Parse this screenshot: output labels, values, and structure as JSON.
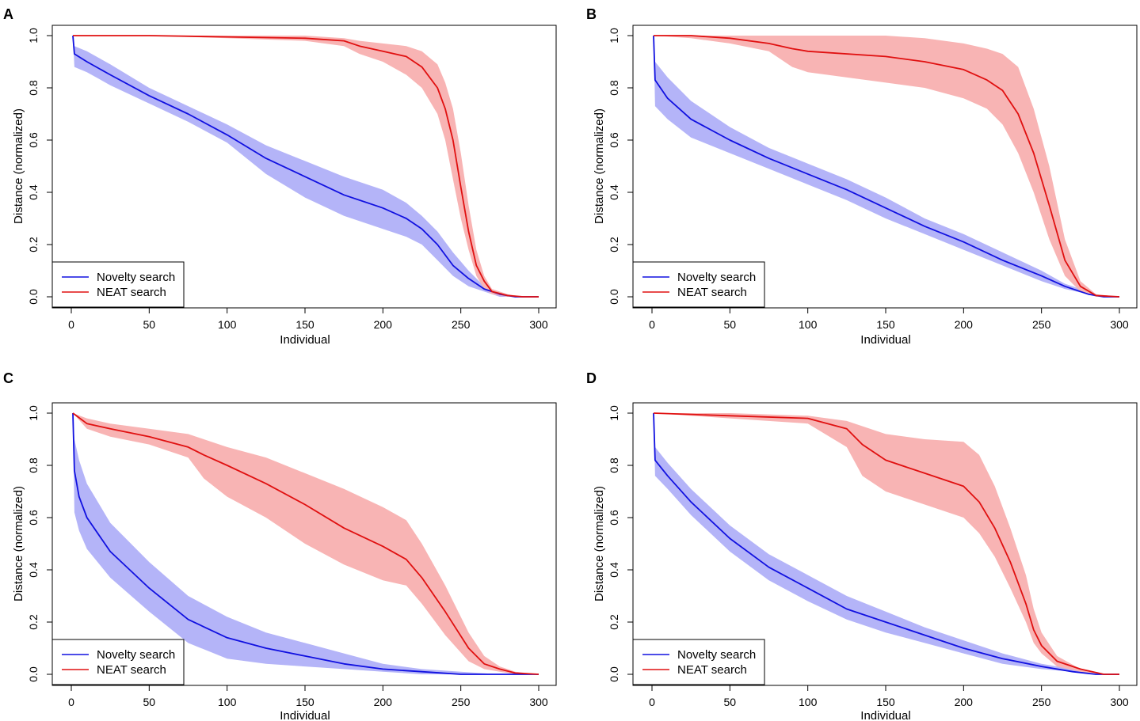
{
  "colors": {
    "novelty_line": "#1010e0",
    "novelty_band": "#b4b4f8",
    "neat_line": "#e01010",
    "neat_band": "#f8b4b4",
    "frame": "#000000"
  },
  "chart_data": [
    {
      "panel": "A",
      "type": "line",
      "xlabel": "Individual",
      "ylabel": "Distance (normalized)",
      "xlim": [
        0,
        300
      ],
      "ylim": [
        0,
        1
      ],
      "xticks": [
        "0",
        "50",
        "100",
        "150",
        "200",
        "250",
        "300"
      ],
      "yticks": [
        "0.0",
        "0.2",
        "0.4",
        "0.6",
        "0.8",
        "1.0"
      ],
      "legend": {
        "position": "bottom-left",
        "entries": [
          "Novelty search",
          "NEAT search"
        ]
      },
      "series": [
        {
          "name": "Novelty search",
          "x": [
            1,
            2,
            10,
            25,
            50,
            75,
            100,
            125,
            150,
            175,
            200,
            215,
            225,
            235,
            245,
            255,
            265,
            275,
            285,
            300
          ],
          "y": [
            1.0,
            0.93,
            0.9,
            0.85,
            0.77,
            0.7,
            0.62,
            0.53,
            0.46,
            0.39,
            0.34,
            0.3,
            0.26,
            0.2,
            0.12,
            0.07,
            0.03,
            0.01,
            0.0,
            0.0
          ],
          "lower": [
            1.0,
            0.88,
            0.86,
            0.81,
            0.74,
            0.67,
            0.59,
            0.47,
            0.38,
            0.31,
            0.26,
            0.23,
            0.2,
            0.14,
            0.08,
            0.04,
            0.02,
            0.0,
            0.0,
            0.0
          ],
          "upper": [
            1.0,
            0.96,
            0.94,
            0.89,
            0.8,
            0.73,
            0.66,
            0.58,
            0.52,
            0.46,
            0.41,
            0.36,
            0.31,
            0.25,
            0.17,
            0.1,
            0.04,
            0.01,
            0.0,
            0.0
          ]
        },
        {
          "name": "NEAT search",
          "x": [
            1,
            50,
            100,
            150,
            175,
            185,
            200,
            215,
            225,
            235,
            240,
            245,
            250,
            255,
            260,
            265,
            270,
            280,
            290,
            300
          ],
          "y": [
            1.0,
            1.0,
            0.995,
            0.99,
            0.98,
            0.96,
            0.94,
            0.92,
            0.88,
            0.8,
            0.72,
            0.6,
            0.42,
            0.25,
            0.12,
            0.06,
            0.02,
            0.005,
            0.0,
            0.0
          ],
          "lower": [
            1.0,
            1.0,
            0.99,
            0.98,
            0.96,
            0.93,
            0.9,
            0.85,
            0.8,
            0.7,
            0.6,
            0.45,
            0.3,
            0.18,
            0.08,
            0.03,
            0.01,
            0.0,
            0.0,
            0.0
          ],
          "upper": [
            1.0,
            1.0,
            1.0,
            1.0,
            0.99,
            0.98,
            0.97,
            0.96,
            0.94,
            0.89,
            0.82,
            0.72,
            0.55,
            0.35,
            0.18,
            0.08,
            0.03,
            0.01,
            0.0,
            0.0
          ]
        }
      ]
    },
    {
      "panel": "B",
      "type": "line",
      "xlabel": "Individual",
      "ylabel": "Distance (normalized)",
      "xlim": [
        0,
        300
      ],
      "ylim": [
        0,
        1
      ],
      "xticks": [
        "0",
        "50",
        "100",
        "150",
        "200",
        "250",
        "300"
      ],
      "yticks": [
        "0.0",
        "0.2",
        "0.4",
        "0.6",
        "0.8",
        "1.0"
      ],
      "legend": {
        "position": "bottom-left",
        "entries": [
          "Novelty search",
          "NEAT search"
        ]
      },
      "series": [
        {
          "name": "Novelty search",
          "x": [
            1,
            2,
            10,
            25,
            50,
            75,
            100,
            125,
            150,
            175,
            200,
            225,
            250,
            265,
            280,
            290,
            300
          ],
          "y": [
            1.0,
            0.83,
            0.76,
            0.68,
            0.6,
            0.53,
            0.47,
            0.41,
            0.34,
            0.27,
            0.21,
            0.14,
            0.08,
            0.04,
            0.01,
            0.0,
            0.0
          ],
          "lower": [
            1.0,
            0.73,
            0.68,
            0.61,
            0.55,
            0.49,
            0.43,
            0.37,
            0.3,
            0.24,
            0.18,
            0.12,
            0.06,
            0.03,
            0.01,
            0.0,
            0.0
          ],
          "upper": [
            1.0,
            0.9,
            0.84,
            0.75,
            0.65,
            0.57,
            0.51,
            0.45,
            0.38,
            0.3,
            0.24,
            0.17,
            0.1,
            0.05,
            0.02,
            0.0,
            0.0
          ]
        },
        {
          "name": "NEAT search",
          "x": [
            1,
            25,
            50,
            75,
            90,
            100,
            150,
            175,
            200,
            215,
            225,
            235,
            245,
            255,
            265,
            275,
            285,
            300
          ],
          "y": [
            1.0,
            1.0,
            0.99,
            0.97,
            0.95,
            0.94,
            0.92,
            0.9,
            0.87,
            0.83,
            0.79,
            0.7,
            0.55,
            0.35,
            0.14,
            0.04,
            0.005,
            0.0
          ],
          "lower": [
            1.0,
            0.99,
            0.97,
            0.94,
            0.88,
            0.86,
            0.82,
            0.8,
            0.76,
            0.72,
            0.66,
            0.55,
            0.4,
            0.22,
            0.08,
            0.02,
            0.0,
            0.0
          ],
          "upper": [
            1.0,
            1.0,
            1.0,
            1.0,
            1.0,
            1.0,
            1.0,
            0.99,
            0.97,
            0.95,
            0.93,
            0.88,
            0.72,
            0.5,
            0.22,
            0.06,
            0.01,
            0.0
          ]
        }
      ]
    },
    {
      "panel": "C",
      "type": "line",
      "xlabel": "Individual",
      "ylabel": "Distance (normalized)",
      "xlim": [
        0,
        300
      ],
      "ylim": [
        0,
        1
      ],
      "xticks": [
        "0",
        "50",
        "100",
        "150",
        "200",
        "250",
        "300"
      ],
      "yticks": [
        "0.0",
        "0.2",
        "0.4",
        "0.6",
        "0.8",
        "1.0"
      ],
      "legend": {
        "position": "bottom-left",
        "entries": [
          "Novelty search",
          "NEAT search"
        ]
      },
      "series": [
        {
          "name": "Novelty search",
          "x": [
            1,
            2,
            5,
            10,
            25,
            50,
            75,
            100,
            125,
            150,
            175,
            200,
            225,
            250,
            275,
            300
          ],
          "y": [
            1.0,
            0.78,
            0.68,
            0.6,
            0.47,
            0.33,
            0.21,
            0.14,
            0.1,
            0.07,
            0.04,
            0.02,
            0.01,
            0.0,
            0.0,
            0.0
          ],
          "lower": [
            1.0,
            0.62,
            0.55,
            0.48,
            0.37,
            0.24,
            0.12,
            0.06,
            0.04,
            0.03,
            0.02,
            0.01,
            0.0,
            0.0,
            0.0,
            0.0
          ],
          "upper": [
            1.0,
            0.9,
            0.82,
            0.73,
            0.58,
            0.43,
            0.3,
            0.22,
            0.16,
            0.12,
            0.08,
            0.04,
            0.02,
            0.01,
            0.0,
            0.0
          ]
        },
        {
          "name": "NEAT search",
          "x": [
            1,
            10,
            25,
            50,
            75,
            85,
            100,
            125,
            150,
            175,
            200,
            215,
            225,
            240,
            255,
            265,
            275,
            285,
            300
          ],
          "y": [
            1.0,
            0.96,
            0.94,
            0.91,
            0.87,
            0.84,
            0.8,
            0.73,
            0.65,
            0.56,
            0.49,
            0.44,
            0.37,
            0.24,
            0.1,
            0.04,
            0.02,
            0.005,
            0.0
          ],
          "lower": [
            1.0,
            0.94,
            0.91,
            0.88,
            0.83,
            0.75,
            0.68,
            0.6,
            0.5,
            0.42,
            0.36,
            0.34,
            0.27,
            0.15,
            0.05,
            0.02,
            0.01,
            0.0,
            0.0
          ],
          "upper": [
            1.0,
            0.98,
            0.96,
            0.94,
            0.92,
            0.9,
            0.87,
            0.83,
            0.77,
            0.71,
            0.64,
            0.59,
            0.5,
            0.34,
            0.16,
            0.07,
            0.03,
            0.01,
            0.0
          ]
        }
      ]
    },
    {
      "panel": "D",
      "type": "line",
      "xlabel": "Individual",
      "ylabel": "Distance (normalized)",
      "xlim": [
        0,
        300
      ],
      "ylim": [
        0,
        1
      ],
      "xticks": [
        "0",
        "50",
        "100",
        "150",
        "200",
        "250",
        "300"
      ],
      "yticks": [
        "0.0",
        "0.2",
        "0.4",
        "0.6",
        "0.8",
        "1.0"
      ],
      "legend": {
        "position": "bottom-left",
        "entries": [
          "Novelty search",
          "NEAT search"
        ]
      },
      "series": [
        {
          "name": "Novelty search",
          "x": [
            1,
            2,
            10,
            25,
            50,
            75,
            100,
            125,
            150,
            175,
            200,
            225,
            250,
            270,
            285,
            300
          ],
          "y": [
            1.0,
            0.82,
            0.76,
            0.66,
            0.52,
            0.41,
            0.33,
            0.25,
            0.2,
            0.15,
            0.1,
            0.06,
            0.03,
            0.01,
            0.0,
            0.0
          ],
          "lower": [
            1.0,
            0.76,
            0.71,
            0.61,
            0.47,
            0.36,
            0.28,
            0.21,
            0.16,
            0.12,
            0.08,
            0.04,
            0.02,
            0.01,
            0.0,
            0.0
          ],
          "upper": [
            1.0,
            0.87,
            0.81,
            0.71,
            0.57,
            0.46,
            0.38,
            0.3,
            0.24,
            0.18,
            0.13,
            0.08,
            0.04,
            0.02,
            0.0,
            0.0
          ]
        },
        {
          "name": "NEAT search",
          "x": [
            1,
            50,
            100,
            125,
            135,
            150,
            175,
            200,
            210,
            220,
            230,
            240,
            245,
            250,
            260,
            275,
            290,
            300
          ],
          "y": [
            1.0,
            0.99,
            0.98,
            0.94,
            0.88,
            0.82,
            0.77,
            0.72,
            0.66,
            0.56,
            0.43,
            0.27,
            0.17,
            0.11,
            0.05,
            0.02,
            0.0,
            0.0
          ],
          "lower": [
            1.0,
            0.98,
            0.96,
            0.87,
            0.76,
            0.7,
            0.65,
            0.6,
            0.54,
            0.45,
            0.33,
            0.2,
            0.12,
            0.08,
            0.03,
            0.01,
            0.0,
            0.0
          ],
          "upper": [
            1.0,
            1.0,
            0.99,
            0.97,
            0.95,
            0.92,
            0.9,
            0.89,
            0.84,
            0.72,
            0.56,
            0.38,
            0.25,
            0.16,
            0.07,
            0.02,
            0.0,
            0.0
          ]
        }
      ]
    }
  ]
}
